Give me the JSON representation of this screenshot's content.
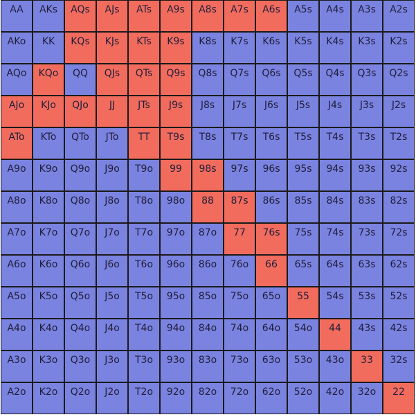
{
  "colors": {
    "fold": "#7b83e0",
    "raise": "#f26c5e",
    "border": "#1a1a1a"
  },
  "rows": [
    [
      "AA",
      "AKs",
      "AQs",
      "AJs",
      "ATs",
      "A9s",
      "A8s",
      "A7s",
      "A6s",
      "A5s",
      "A4s",
      "A3s",
      "A2s"
    ],
    [
      "AKo",
      "KK",
      "KQs",
      "KJs",
      "KTs",
      "K9s",
      "K8s",
      "K7s",
      "K6s",
      "K5s",
      "K4s",
      "K3s",
      "K2s"
    ],
    [
      "AQo",
      "KQo",
      "QQ",
      "QJs",
      "QTs",
      "Q9s",
      "Q8s",
      "Q7s",
      "Q6s",
      "Q5s",
      "Q4s",
      "Q3s",
      "Q2s"
    ],
    [
      "AJo",
      "KJo",
      "QJo",
      "JJ",
      "JTs",
      "J9s",
      "J8s",
      "J7s",
      "J6s",
      "J5s",
      "J4s",
      "J3s",
      "J2s"
    ],
    [
      "ATo",
      "KTo",
      "QTo",
      "JTo",
      "TT",
      "T9s",
      "T8s",
      "T7s",
      "T6s",
      "T5s",
      "T4s",
      "T3s",
      "T2s"
    ],
    [
      "A9o",
      "K9o",
      "Q9o",
      "J9o",
      "T9o",
      "99",
      "98s",
      "97s",
      "96s",
      "95s",
      "94s",
      "93s",
      "92s"
    ],
    [
      "A8o",
      "K8o",
      "Q8o",
      "J8o",
      "T8o",
      "98o",
      "88",
      "87s",
      "86s",
      "85s",
      "84s",
      "83s",
      "82s"
    ],
    [
      "A7o",
      "K7o",
      "Q7o",
      "J7o",
      "T7o",
      "97o",
      "87o",
      "77",
      "76s",
      "75s",
      "74s",
      "73s",
      "72s"
    ],
    [
      "A6o",
      "K6o",
      "Q6o",
      "J6o",
      "T6o",
      "96o",
      "86o",
      "76o",
      "66",
      "65s",
      "64s",
      "63s",
      "62s"
    ],
    [
      "A5o",
      "K5o",
      "Q5o",
      "J5o",
      "T5o",
      "95o",
      "85o",
      "75o",
      "65o",
      "55",
      "54s",
      "53s",
      "52s"
    ],
    [
      "A4o",
      "K4o",
      "Q4o",
      "J4o",
      "T4o",
      "94o",
      "84o",
      "74o",
      "64o",
      "54o",
      "44",
      "43s",
      "42s"
    ],
    [
      "A3o",
      "K3o",
      "Q3o",
      "J3o",
      "T3o",
      "93o",
      "83o",
      "73o",
      "63o",
      "53o",
      "43o",
      "33",
      "32s"
    ],
    [
      "A2o",
      "K2o",
      "Q2o",
      "J2o",
      "T2o",
      "92o",
      "82o",
      "72o",
      "62o",
      "52o",
      "42o",
      "32o",
      "22"
    ]
  ],
  "highlighted_hands": [
    "AQs",
    "AJs",
    "ATs",
    "A9s",
    "A8s",
    "A7s",
    "A6s",
    "KQs",
    "KJs",
    "KTs",
    "K9s",
    "KQo",
    "QJs",
    "QTs",
    "Q9s",
    "AJo",
    "KJo",
    "QJo",
    "JJ",
    "JTs",
    "J9s",
    "ATo",
    "TT",
    "T9s",
    "99",
    "98s",
    "88",
    "87s",
    "77",
    "76s",
    "66",
    "55",
    "44",
    "33",
    "22"
  ]
}
